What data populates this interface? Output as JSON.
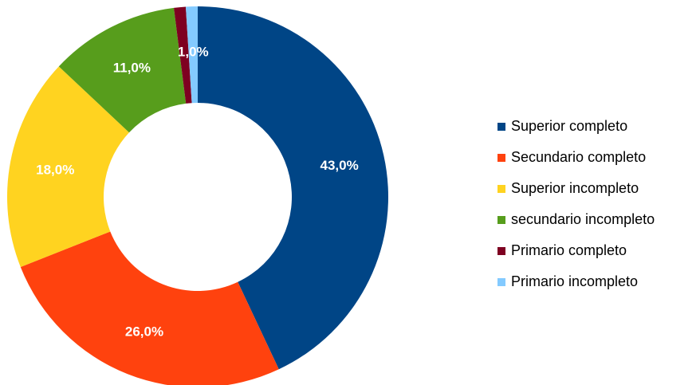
{
  "chart_data": {
    "type": "pie",
    "donut": true,
    "title": "",
    "legend_position": "right",
    "categories": [
      "Superior completo",
      "Secundario completo",
      "Superior incompleto",
      "secundario incompleto",
      "Primario completo",
      "Primario incompleto"
    ],
    "values": [
      43.0,
      26.0,
      18.0,
      11.0,
      1.0,
      1.0
    ],
    "data_labels": [
      "43,0%",
      "26,0%",
      "18,0%",
      "11,0%",
      "",
      "1,0%"
    ],
    "colors": [
      "#004586",
      "#ff420e",
      "#ffd320",
      "#579d1c",
      "#7e0021",
      "#83caff"
    ]
  }
}
